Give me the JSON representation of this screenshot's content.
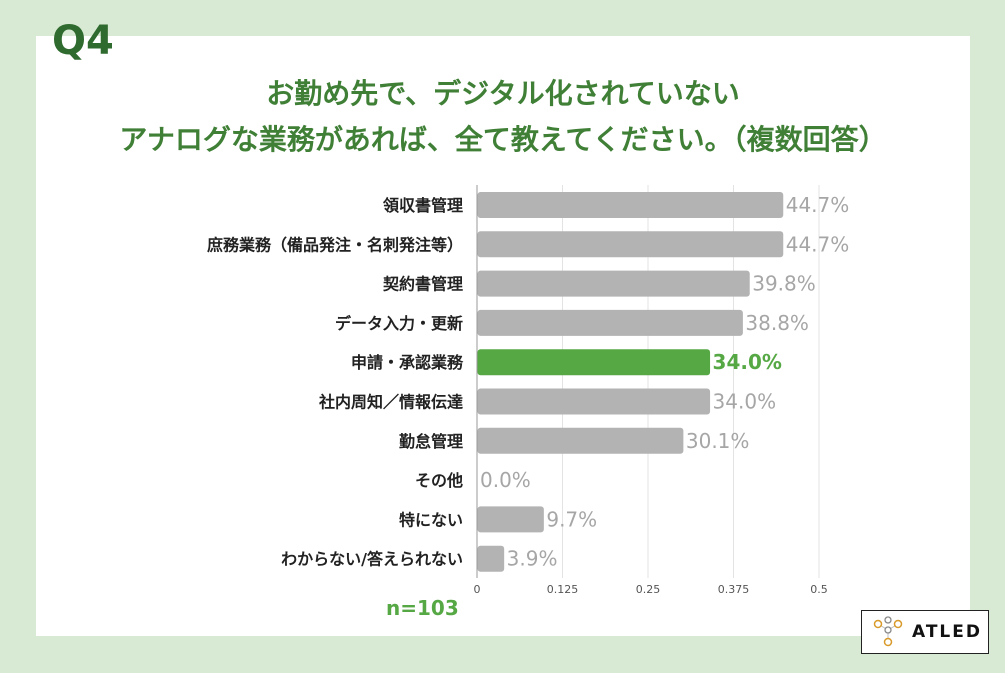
{
  "question_number": "Q4",
  "title_line1": "お勤め先で、デジタル化されていない",
  "title_line2": "アナログな業務があれば、全て教えてください。（複数回答）",
  "sample_size": "n=103",
  "logo_text": "ATLED",
  "colors": {
    "background": "#d8ead3",
    "bar": "#b3b3b3",
    "highlight_bar": "#56a845",
    "value_label": "#a6a6a6",
    "highlight_label": "#56a845",
    "title": "#3f7f36"
  },
  "chart_data": {
    "type": "bar",
    "orientation": "horizontal",
    "categories": [
      "領収書管理",
      "庶務業務（備品発注・名刺発注等）",
      "契約書管理",
      "データ入力・更新",
      "申請・承認業務",
      "社内周知／情報伝達",
      "勤怠管理",
      "その他",
      "特にない",
      "わからない/答えられない"
    ],
    "values": [
      0.447,
      0.447,
      0.398,
      0.388,
      0.34,
      0.34,
      0.301,
      0.0,
      0.097,
      0.039
    ],
    "value_labels": [
      "44.7%",
      "44.7%",
      "39.8%",
      "38.8%",
      "34.0%",
      "34.0%",
      "30.1%",
      "0.0%",
      "9.7%",
      "3.9%"
    ],
    "highlight_index": 4,
    "xlim": [
      0,
      0.5
    ],
    "x_ticks": [
      "0",
      "0.125",
      "0.25",
      "0.375",
      "0.5"
    ],
    "grid": true
  }
}
